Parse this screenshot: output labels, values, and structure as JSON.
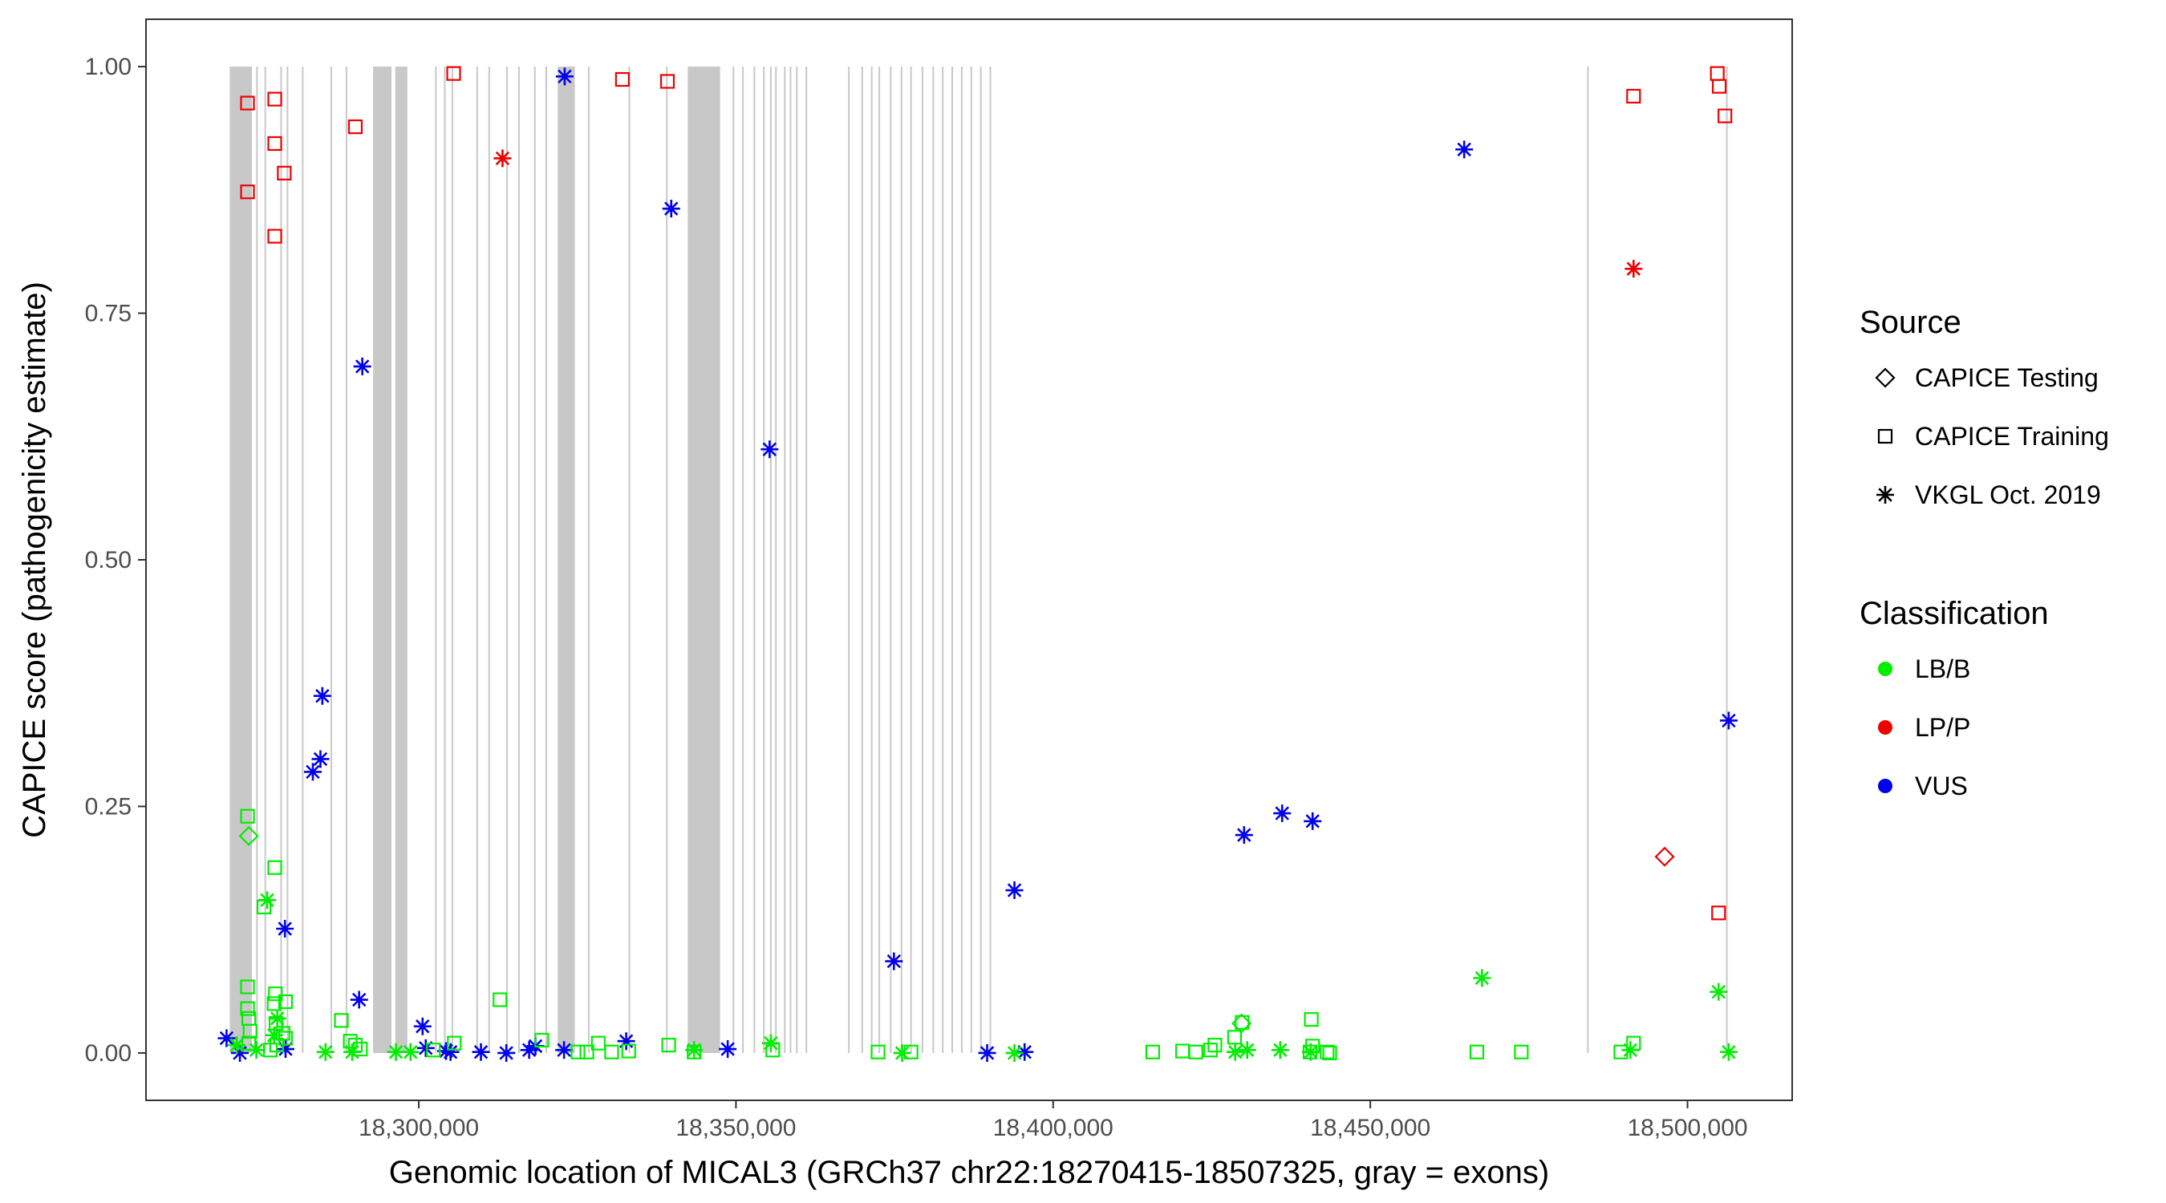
{
  "chart_data": {
    "type": "scatter",
    "title": "",
    "xlabel": "Genomic location of MICAL3 (GRCh37 chr22:18270415-18507325, gray = exons)",
    "ylabel": "CAPICE score (pathogenicity estimate)",
    "xlim": [
      18257000,
      18516500
    ],
    "ylim": [
      -0.048,
      1.048
    ],
    "x_ticks": [
      18300000,
      18350000,
      18400000,
      18450000,
      18500000
    ],
    "x_tick_labels": [
      "18,300,000",
      "18,350,000",
      "18,400,000",
      "18,450,000",
      "18,500,000"
    ],
    "y_ticks": [
      0,
      0.25,
      0.5,
      0.75,
      1.0
    ],
    "y_tick_labels": [
      "0.00",
      "0.25",
      "0.50",
      "0.75",
      "1.00"
    ],
    "grid": false,
    "exon_color": "#c8c8c8",
    "exons_wide": [
      [
        18270200,
        18273700
      ],
      [
        18292800,
        18295700
      ],
      [
        18296300,
        18298200
      ],
      [
        18321900,
        18324600
      ],
      [
        18342400,
        18347500
      ]
    ],
    "exons_narrow": [
      18274500,
      18275800,
      18278300,
      18279300,
      18281700,
      18286200,
      18288600,
      18302700,
      18304100,
      18305300,
      18309200,
      18311100,
      18313900,
      18315800,
      18318300,
      18320100,
      18326800,
      18333200,
      18339100,
      18349600,
      18351100,
      18352900,
      18354400,
      18355500,
      18356300,
      18357700,
      18358600,
      18359600,
      18361100,
      18367800,
      18369900,
      18371400,
      18372600,
      18374400,
      18376100,
      18377600,
      18379400,
      18381100,
      18382600,
      18384100,
      18385600,
      18387100,
      18388600,
      18390100,
      18484300,
      18506200
    ],
    "legend": {
      "position": "right",
      "source_title": "Source",
      "source_entries": [
        {
          "label": "CAPICE Testing",
          "shape": "diamond"
        },
        {
          "label": "CAPICE Training",
          "shape": "square"
        },
        {
          "label": "VKGL Oct. 2019",
          "shape": "asterisk"
        }
      ],
      "class_title": "Classification",
      "class_entries": [
        {
          "label": "LB/B",
          "color": "#00ee00"
        },
        {
          "label": "LP/P",
          "color": "#ee0000"
        },
        {
          "label": "VUS",
          "color": "#0000ee"
        }
      ]
    },
    "series": [
      {
        "source": "CAPICE Training",
        "class": "LP/P",
        "shape": "square",
        "color": "#ee0000",
        "x": [
          18273000,
          18277300,
          18277300,
          18278800,
          18277300,
          18273000,
          18290000,
          18305500,
          18332100,
          18339200,
          18491500,
          18504700,
          18505000,
          18505900,
          18504900
        ],
        "y": [
          0.963,
          0.967,
          0.922,
          0.892,
          0.828,
          0.873,
          0.939,
          0.993,
          0.987,
          0.985,
          0.97,
          0.993,
          0.98,
          0.95,
          0.142
        ]
      },
      {
        "source": "VKGL Oct. 2019",
        "class": "LP/P",
        "shape": "asterisk",
        "color": "#ee0000",
        "x": [
          18313200,
          18491500
        ],
        "y": [
          0.907,
          0.795
        ]
      },
      {
        "source": "CAPICE Testing",
        "class": "LP/P",
        "shape": "diamond",
        "color": "#ee0000",
        "x": [
          18496400
        ],
        "y": [
          0.199
        ]
      },
      {
        "source": "VKGL Oct. 2019",
        "class": "VUS",
        "shape": "asterisk",
        "color": "#0000ee",
        "x": [
          18323000,
          18339800,
          18291100,
          18355300,
          18284800,
          18284500,
          18283300,
          18278900,
          18290600,
          18464800,
          18374900,
          18393900,
          18430100,
          18436100,
          18440900,
          18506500,
          18300600,
          18269700,
          18279000,
          18301100,
          18304300,
          18305000,
          18309800,
          18313800,
          18317400,
          18318400,
          18322900,
          18332700,
          18348700,
          18389600,
          18395500,
          18271800
        ],
        "y": [
          0.99,
          0.856,
          0.696,
          0.612,
          0.362,
          0.298,
          0.285,
          0.126,
          0.054,
          0.916,
          0.093,
          0.165,
          0.221,
          0.243,
          0.235,
          0.337,
          0.027,
          0.015,
          0.004,
          0.005,
          0.002,
          0.001,
          0.001,
          0.0,
          0.003,
          0.007,
          0.003,
          0.012,
          0.004,
          0.0,
          0.001,
          0.0
        ]
      },
      {
        "source": "CAPICE Training",
        "class": "LB/B",
        "shape": "square",
        "color": "#00ee00",
        "x": [
          18273000,
          18275600,
          18277300,
          18277400,
          18279000,
          18273000,
          18273000,
          18273200,
          18273400,
          18277200,
          18277500,
          18278600,
          18279000,
          18287800,
          18289200,
          18290000,
          18290800,
          18302300,
          18305600,
          18312800,
          18319400,
          18325100,
          18326500,
          18328300,
          18330400,
          18333100,
          18339400,
          18343400,
          18355800,
          18372400,
          18377600,
          18415700,
          18420400,
          18422500,
          18424800,
          18425500,
          18428600,
          18429800,
          18440700,
          18440900,
          18440500,
          18443200,
          18443600,
          18466800,
          18473800,
          18489500,
          18491500,
          18273200,
          18277600,
          18276600
        ],
        "y": [
          0.24,
          0.148,
          0.188,
          0.06,
          0.052,
          0.067,
          0.045,
          0.035,
          0.022,
          0.05,
          0.03,
          0.02,
          0.015,
          0.033,
          0.012,
          0.008,
          0.004,
          0.003,
          0.01,
          0.054,
          0.013,
          0.001,
          0.001,
          0.01,
          0.001,
          0.002,
          0.008,
          0.001,
          0.003,
          0.001,
          0.001,
          0.001,
          0.002,
          0.001,
          0.003,
          0.008,
          0.016,
          0.031,
          0.034,
          0.007,
          0.001,
          0.001,
          0.0,
          0.001,
          0.001,
          0.001,
          0.01,
          0.01,
          0.008,
          0.003
        ]
      },
      {
        "source": "VKGL Oct. 2019",
        "class": "LB/B",
        "shape": "asterisk",
        "color": "#00ee00",
        "x": [
          18276100,
          18277700,
          18277200,
          18271300,
          18274400,
          18285300,
          18289500,
          18296400,
          18298700,
          18343400,
          18355500,
          18376200,
          18393900,
          18430600,
          18435800,
          18440600,
          18467600,
          18491000,
          18504900,
          18506500,
          18428700
        ],
        "y": [
          0.155,
          0.035,
          0.018,
          0.008,
          0.003,
          0.001,
          0.001,
          0.001,
          0.001,
          0.003,
          0.01,
          0.0,
          0.0,
          0.003,
          0.003,
          0.001,
          0.076,
          0.003,
          0.062,
          0.001,
          0.001
        ]
      },
      {
        "source": "CAPICE Testing",
        "class": "LB/B",
        "shape": "diamond",
        "color": "#00ee00",
        "x": [
          18273200,
          18429700
        ],
        "y": [
          0.22,
          0.03
        ]
      }
    ]
  }
}
